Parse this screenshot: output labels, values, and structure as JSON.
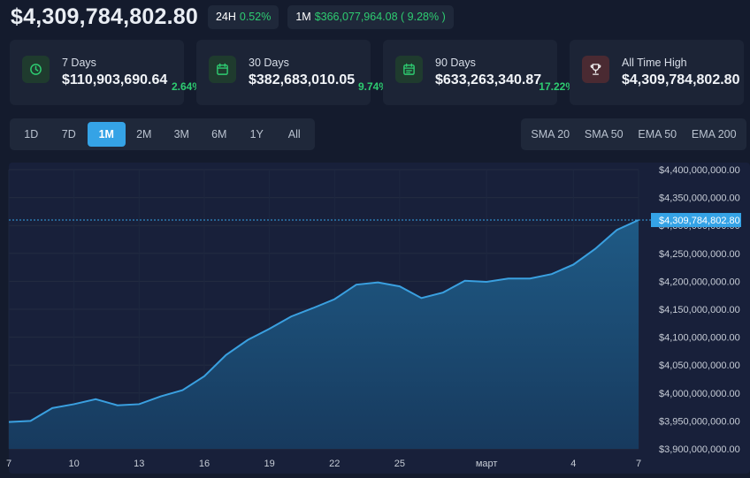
{
  "header": {
    "price": "$4,309,784,802.80",
    "h24_label": "24H",
    "h24_value": "0.52%",
    "m1_label": "1M",
    "m1_value": "$366,077,964.08 ( 9.28% )"
  },
  "stats": [
    {
      "label": "7 Days",
      "value": "$110,903,690.64",
      "pct": "2.64%",
      "icon": "clock-icon"
    },
    {
      "label": "30 Days",
      "value": "$382,683,010.05",
      "pct": "9.74%",
      "icon": "calendar-icon"
    },
    {
      "label": "90 Days",
      "value": "$633,263,340.87",
      "pct": "17.22%",
      "icon": "calendar-range-icon"
    },
    {
      "label": "All Time High",
      "value": "$4,309,784,802.80",
      "icon": "trophy-icon"
    }
  ],
  "ranges": [
    "1D",
    "7D",
    "1M",
    "2M",
    "3M",
    "6M",
    "1Y",
    "All"
  ],
  "active_range": "1M",
  "moving_averages": [
    "SMA 20",
    "SMA 50",
    "EMA 50",
    "EMA 200"
  ],
  "colors": {
    "accent": "#35a3e6",
    "positive": "#2ecc71",
    "line": "#3aa0e0",
    "fill": "#1f4a6e"
  },
  "chart_data": {
    "type": "area",
    "x_ticks": [
      "7",
      "10",
      "13",
      "16",
      "19",
      "22",
      "25",
      "март",
      "4",
      "7"
    ],
    "x": [
      "7",
      "8",
      "9",
      "10",
      "11",
      "12",
      "13",
      "14",
      "15",
      "16",
      "17",
      "18",
      "19",
      "20",
      "21",
      "22",
      "23",
      "24",
      "25",
      "26",
      "27",
      "28",
      "29",
      "1",
      "2",
      "3",
      "4",
      "5",
      "6",
      "7"
    ],
    "values": [
      3948000000,
      3950000000,
      3973000000,
      3980000000,
      3989000000,
      3978000000,
      3980000000,
      3994000000,
      4005000000,
      4030000000,
      4068000000,
      4095000000,
      4115000000,
      4137000000,
      4152000000,
      4168000000,
      4194000000,
      4198000000,
      4191000000,
      4170000000,
      4180000000,
      4201000000,
      4199000000,
      4205000000,
      4205000000,
      4213000000,
      4230000000,
      4258000000,
      4292000000,
      4309784802.8
    ],
    "ylim": [
      3900000000,
      4400000000
    ],
    "y_ticks": [
      "$4,400,000,000.00",
      "$4,350,000,000.00",
      "$4,300,000,000.00",
      "$4,250,000,000.00",
      "$4,200,000,000.00",
      "$4,150,000,000.00",
      "$4,100,000,000.00",
      "$4,050,000,000.00",
      "$4,000,000,000.00",
      "$3,950,000,000.00",
      "$3,900,000,000.00"
    ],
    "y_tick_values": [
      4400000000,
      4350000000,
      4300000000,
      4250000000,
      4200000000,
      4150000000,
      4100000000,
      4050000000,
      4000000000,
      3950000000,
      3900000000
    ],
    "current_label": "$4,309,784,802.80",
    "current_value": 4309784802.8,
    "grid": true
  }
}
